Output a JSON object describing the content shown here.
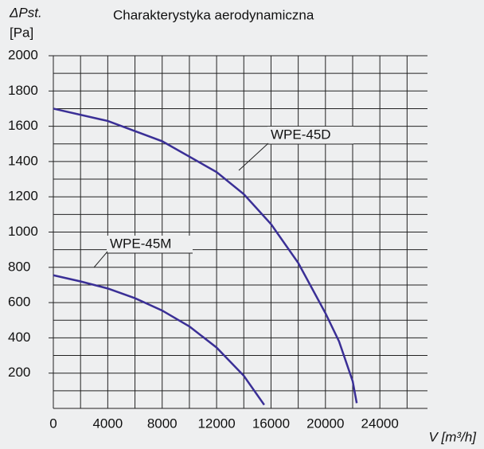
{
  "chart_data": {
    "type": "line",
    "title": "Charakterystyka aerodynamiczna",
    "y_label": "ΔPst.",
    "y_unit": "[Pa]",
    "x_label": "V [m³/h]",
    "xlim": [
      0,
      27500
    ],
    "ylim": [
      0,
      2000
    ],
    "xticks": [
      0,
      4000,
      8000,
      12000,
      16000,
      20000,
      24000
    ],
    "yticks": [
      200,
      400,
      600,
      800,
      1000,
      1200,
      1400,
      1600,
      1800,
      2000
    ],
    "xgrid": [
      0,
      2000,
      4000,
      6000,
      8000,
      10000,
      12000,
      14000,
      16000,
      18000,
      20000,
      22000,
      24000,
      26000
    ],
    "ygrid": [
      100,
      200,
      300,
      400,
      500,
      600,
      700,
      800,
      900,
      1000,
      1100,
      1200,
      1300,
      1400,
      1500,
      1600,
      1700,
      1800,
      1900,
      2000
    ],
    "grid": true,
    "series": [
      {
        "name": "WPE-45D",
        "color": "#3a2f96",
        "x": [
          0,
          4000,
          8000,
          12000,
          14000,
          16000,
          18000,
          20000,
          21000,
          22000,
          22300
        ],
        "values": [
          1700,
          1630,
          1515,
          1340,
          1215,
          1045,
          825,
          540,
          380,
          155,
          30
        ]
      },
      {
        "name": "WPE-45M",
        "color": "#3a2f96",
        "x": [
          0,
          2000,
          4000,
          6000,
          8000,
          10000,
          12000,
          14000,
          15500
        ],
        "values": [
          755,
          720,
          680,
          625,
          555,
          465,
          345,
          185,
          20
        ]
      }
    ]
  }
}
